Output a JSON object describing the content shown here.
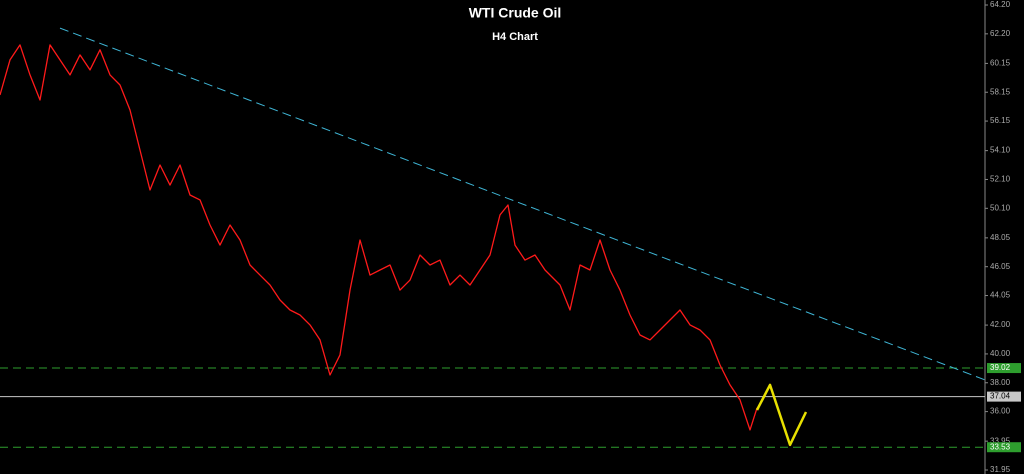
{
  "chart_data": {
    "type": "line",
    "title": "WTI Crude Oil",
    "subtitle": "H4 Chart",
    "xlim": [
      0,
      985
    ],
    "ylim": [
      31.95,
      64.2
    ],
    "yticks": [
      {
        "value": 64.2,
        "label": "64.20"
      },
      {
        "value": 62.2,
        "label": "62.20"
      },
      60.15,
      58.15,
      56.15,
      {
        "value": 54.1,
        "label": "54.10"
      },
      {
        "value": 52.1,
        "label": "52.10"
      },
      {
        "value": 50.1,
        "label": "50.10"
      },
      48.05,
      46.05,
      44.05,
      {
        "value": 42,
        "label": "42.00"
      },
      {
        "value": 40,
        "label": "40.00"
      },
      {
        "value": 38,
        "label": "38.00"
      },
      {
        "value": 36,
        "label": "36.00"
      },
      33.95,
      31.95
    ],
    "series": [
      {
        "color": "#ff1a1a",
        "style": "solid",
        "x": [
          0,
          10,
          20,
          30,
          40,
          50,
          60,
          70,
          80,
          90,
          100,
          110,
          120,
          130,
          140,
          150,
          160,
          170,
          180,
          190,
          200,
          210,
          220,
          230,
          240,
          250,
          260,
          270,
          280,
          290,
          300,
          310,
          320,
          330,
          340,
          350,
          360,
          370,
          380,
          390,
          400,
          410,
          420,
          430,
          440,
          450,
          460,
          470,
          480,
          490,
          500,
          508,
          515,
          525,
          535,
          545,
          560,
          570,
          580,
          590,
          600,
          610,
          620,
          630,
          640,
          650,
          660,
          670,
          680,
          690,
          700,
          710,
          720,
          730,
          740,
          750,
          757
        ],
        "values": [
          57.96,
          60.39,
          61.43,
          59.35,
          57.61,
          61.43,
          60.39,
          59.35,
          60.74,
          59.7,
          61.09,
          59.35,
          58.65,
          56.92,
          54.14,
          51.37,
          53.1,
          51.71,
          53.1,
          51.02,
          50.68,
          48.94,
          47.55,
          48.94,
          47.9,
          46.17,
          45.47,
          44.78,
          43.74,
          43.05,
          42.7,
          42.01,
          40.97,
          38.54,
          39.93,
          44.43,
          47.9,
          45.47,
          45.82,
          46.17,
          44.43,
          45.12,
          46.86,
          46.17,
          46.51,
          44.78,
          45.47,
          44.78,
          45.82,
          46.86,
          49.64,
          50.33,
          47.55,
          46.51,
          46.86,
          45.82,
          44.78,
          43.05,
          46.17,
          45.82,
          47.9,
          45.82,
          44.43,
          42.7,
          41.31,
          40.97,
          41.66,
          42.35,
          43.05,
          42.01,
          41.66,
          40.97,
          39.23,
          37.85,
          36.81,
          34.73,
          36.25
        ]
      },
      {
        "color": "#3fb6d6",
        "style": "dashed",
        "x": [
          60,
          985
        ],
        "values": [
          62.6,
          38.2
        ]
      },
      {
        "color": "#e8e000",
        "style": "solid",
        "x": [
          757,
          770,
          790,
          806
        ],
        "values": [
          36.11,
          37.85,
          33.69,
          35.97
        ]
      }
    ],
    "levels": [
      {
        "value": 39.02,
        "color": "#2e9e2e",
        "style": "dashed"
      },
      {
        "value": 37.04,
        "color": "#c8c8c8",
        "style": "solid"
      },
      {
        "value": 33.53,
        "color": "#2e9e2e",
        "style": "dashed"
      }
    ]
  }
}
